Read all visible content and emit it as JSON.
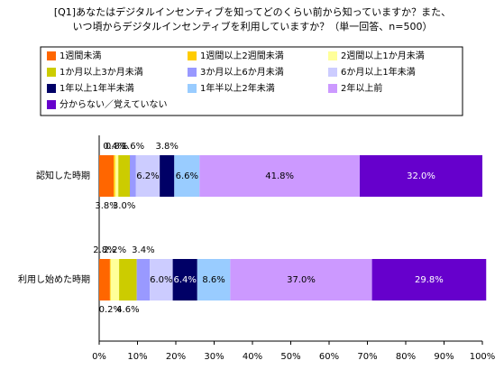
{
  "chart_data": {
    "type": "stacked-bar-horizontal",
    "title": [
      "[Q1]あなたはデジタルインセンティブを知ってどのくらい前から知っていますか？また、",
      "いつ頃からデジタルインセンティブを利用していますか？（単一回答、n=500）"
    ],
    "categories": [
      "認知した時期",
      "利用し始めた時期"
    ],
    "series": [
      {
        "name": "1週間未満",
        "color": "#ff6600",
        "values": [
          3.8,
          2.8
        ],
        "value_labels": [
          "3.8%",
          "2.8%"
        ]
      },
      {
        "name": "1週間以上2週間未満",
        "color": "#ffcc00",
        "values": [
          0.4,
          0.2
        ],
        "value_labels": [
          "0.4%",
          "0.2%"
        ]
      },
      {
        "name": "2週間以上1か月未満",
        "color": "#ffff99",
        "values": [
          0.8,
          2.2
        ],
        "value_labels": [
          "0.8%",
          "2.2%"
        ]
      },
      {
        "name": "1か月以上3か月未満",
        "color": "#cccc00",
        "values": [
          3.0,
          4.6
        ],
        "value_labels": [
          "3.0%",
          "4.6%"
        ]
      },
      {
        "name": "3か月以上6か月未満",
        "color": "#9999ff",
        "values": [
          1.6,
          3.4
        ],
        "value_labels": [
          "1.6%",
          "3.4%"
        ]
      },
      {
        "name": "6か月以上1年未満",
        "color": "#ccccff",
        "values": [
          6.2,
          6.0
        ],
        "value_labels": [
          "6.2%",
          "6.0%"
        ]
      },
      {
        "name": "1年以上1年半未満",
        "color": "#000066",
        "values": [
          3.8,
          6.4
        ],
        "value_labels": [
          "3.8%",
          "6.4%"
        ]
      },
      {
        "name": "1年半以上2年未満",
        "color": "#99ccff",
        "values": [
          6.6,
          8.6
        ],
        "value_labels": [
          "6.6%",
          "8.6%"
        ]
      },
      {
        "name": "2年以上前",
        "color": "#cc99ff",
        "values": [
          41.8,
          37.0
        ],
        "value_labels": [
          "41.8%",
          "37.0%"
        ]
      },
      {
        "name": "分からない／覚えていない",
        "color": "#6600cc",
        "values": [
          32.0,
          29.8
        ],
        "value_labels": [
          "32.0%",
          "29.8%"
        ]
      }
    ],
    "xlim": [
      0,
      100
    ],
    "xticks": [
      {
        "value": 0,
        "label": "0%"
      },
      {
        "value": 10,
        "label": "10%"
      },
      {
        "value": 20,
        "label": "20%"
      },
      {
        "value": 30,
        "label": "30%"
      },
      {
        "value": 40,
        "label": "40%"
      },
      {
        "value": 50,
        "label": "50%"
      },
      {
        "value": 60,
        "label": "60%"
      },
      {
        "value": 70,
        "label": "70%"
      },
      {
        "value": 80,
        "label": "80%"
      },
      {
        "value": 90,
        "label": "90%"
      },
      {
        "value": 100,
        "label": "100%"
      }
    ]
  }
}
